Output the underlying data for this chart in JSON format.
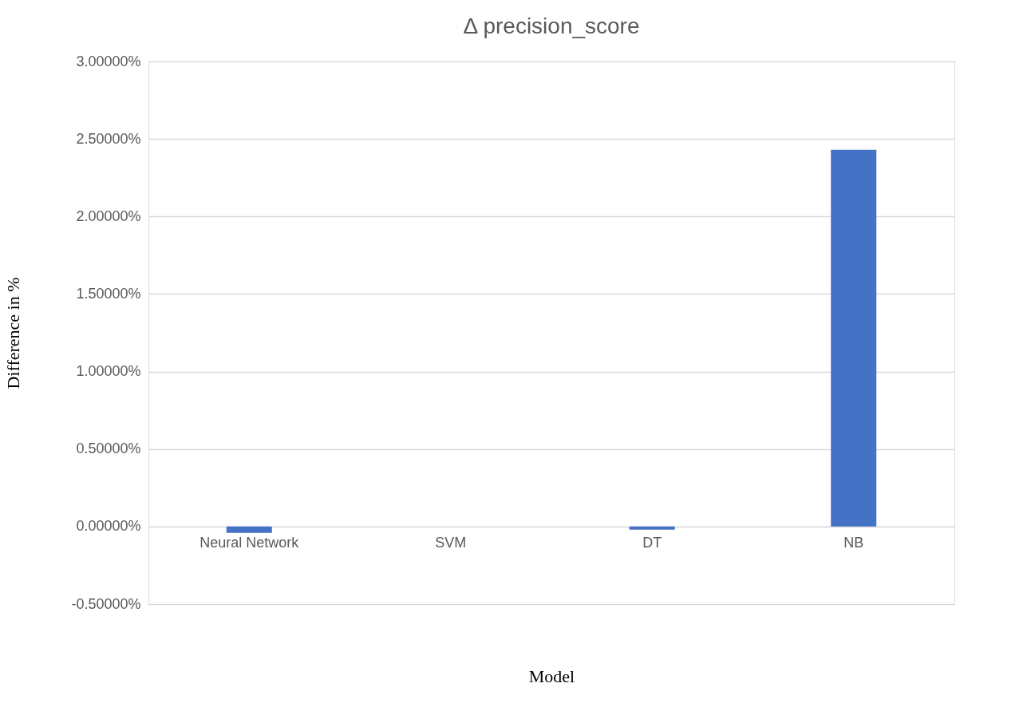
{
  "chart_data": {
    "type": "bar",
    "title": "Δ precision_score",
    "xlabel": "Model",
    "ylabel": "Difference in %",
    "categories": [
      "Neural Network",
      "SVM",
      "DT",
      "NB"
    ],
    "values": [
      -0.04,
      0,
      -0.02,
      2.43
    ],
    "color": "#4472c4",
    "ylim": [
      -0.5,
      3
    ],
    "yticks": [
      {
        "value": -0.5,
        "label": "-0.50000%"
      },
      {
        "value": 0,
        "label": "0.00000%"
      },
      {
        "value": 0.5,
        "label": "0.50000%"
      },
      {
        "value": 1,
        "label": "1.00000%"
      },
      {
        "value": 1.5,
        "label": "1.50000%"
      },
      {
        "value": 2,
        "label": "2.00000%"
      },
      {
        "value": 2.5,
        "label": "2.50000%"
      },
      {
        "value": 3,
        "label": "3.00000%"
      }
    ],
    "grid": "y"
  }
}
